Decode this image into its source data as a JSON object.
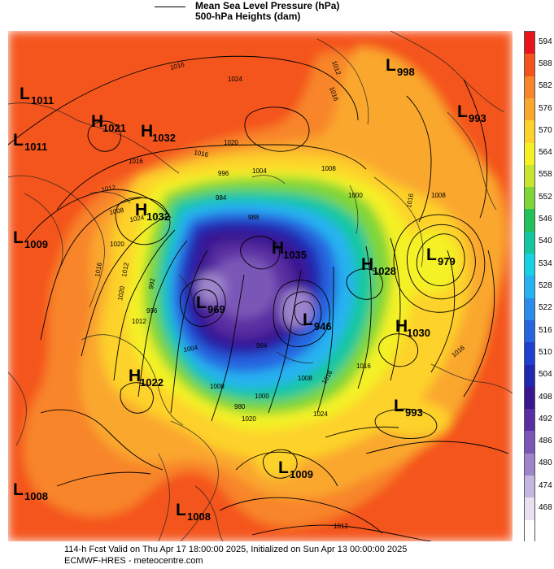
{
  "legend": {
    "line_label": "Mean Sea Level Pressure (hPa)",
    "fill_label": "500-hPa Heights (dam)"
  },
  "pressure_systems": [
    {
      "type": "L",
      "value": "1011"
    },
    {
      "type": "H",
      "value": "1021"
    },
    {
      "type": "L",
      "value": "1011"
    },
    {
      "type": "H",
      "value": "1032"
    },
    {
      "type": "L",
      "value": "998"
    },
    {
      "type": "L",
      "value": "993"
    },
    {
      "type": "H",
      "value": "1032"
    },
    {
      "type": "L",
      "value": "1009"
    },
    {
      "type": "H",
      "value": "1035"
    },
    {
      "type": "H",
      "value": "1028"
    },
    {
      "type": "L",
      "value": "979"
    },
    {
      "type": "L",
      "value": "969"
    },
    {
      "type": "L",
      "value": "946"
    },
    {
      "type": "H",
      "value": "1030"
    },
    {
      "type": "H",
      "value": "1022"
    },
    {
      "type": "L",
      "value": "993"
    },
    {
      "type": "L",
      "value": "1009"
    },
    {
      "type": "L",
      "value": "1008"
    },
    {
      "type": "L",
      "value": "1008"
    }
  ],
  "isobar_labels": [
    "1016",
    "1024",
    "1012",
    "1016",
    "1020",
    "1016",
    "1004",
    "1008",
    "996",
    "1012",
    "1016",
    "1008",
    "1024",
    "1000",
    "988",
    "984",
    "1016",
    "1008",
    "1020",
    "992",
    "1012",
    "1020",
    "1012",
    "1016",
    "996",
    "1004",
    "984",
    "1008",
    "1016",
    "980",
    "1000",
    "1008",
    "1024",
    "1020",
    "1016",
    "1016",
    "1012"
  ],
  "colorbar": {
    "unit": "dam",
    "levels": [
      "594",
      "588",
      "582",
      "576",
      "570",
      "564",
      "558",
      "552",
      "546",
      "540",
      "534",
      "528",
      "522",
      "516",
      "510",
      "504",
      "498",
      "492",
      "486",
      "480",
      "474",
      "468"
    ],
    "colors": [
      "#e8141b",
      "#f4541c",
      "#f8852a",
      "#faa72d",
      "#fdd22b",
      "#f4f125",
      "#c6e52c",
      "#7fd638",
      "#23c15a",
      "#12c7a0",
      "#17d2e4",
      "#26b2f1",
      "#2c8ced",
      "#2565e0",
      "#1f3fcf",
      "#2127b0",
      "#3a1590",
      "#5a2ea2",
      "#7a56b7",
      "#9e84ca",
      "#c4b6de",
      "#e7e1f0",
      "#ffffff"
    ]
  },
  "footer": {
    "line1": "114-h Fcst Valid on Thu Apr 17 18:00:00 2025, Initialized on Sun Apr 13 00:00:00 2025",
    "line2": "ECMWF-HRES  - meteocentre.com"
  }
}
